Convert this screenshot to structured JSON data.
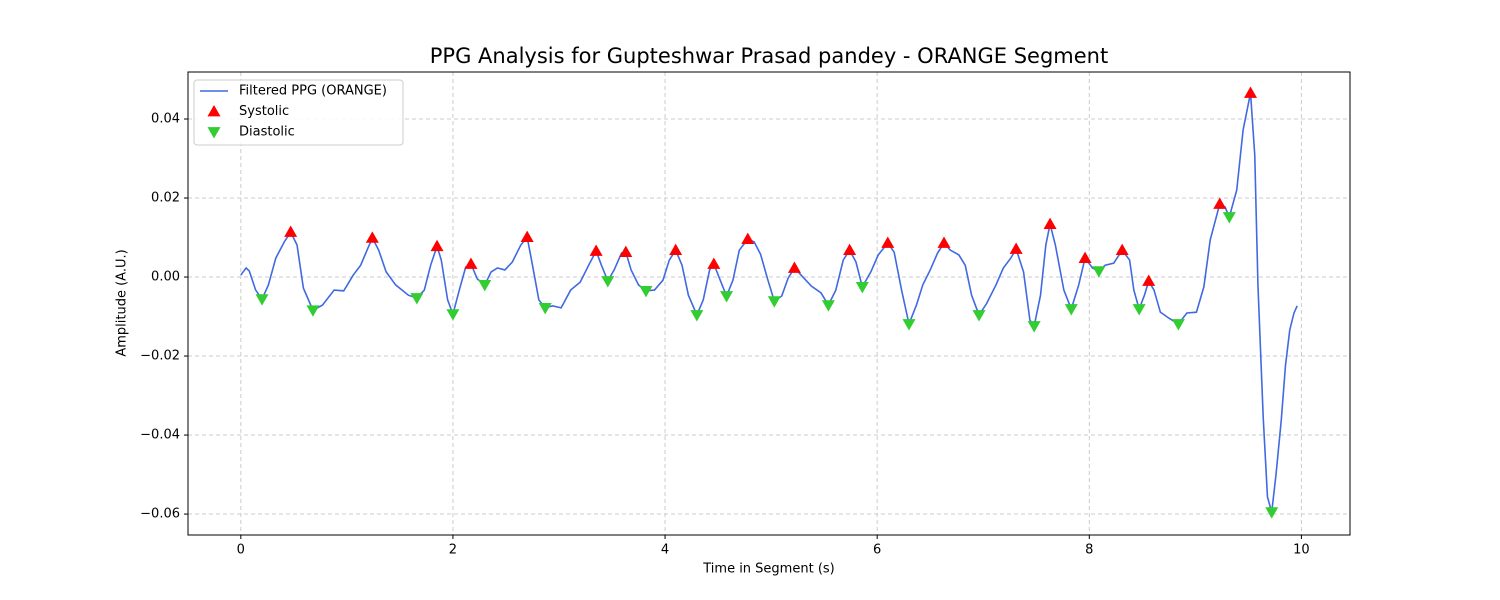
{
  "chart_data": {
    "type": "line",
    "title": "PPG Analysis for Gupteshwar Prasad pandey - ORANGE Segment",
    "xlabel": "Time in Segment (s)",
    "ylabel": "Amplitude (A.U.)",
    "xlim": [
      -0.498,
      10.458
    ],
    "ylim": [
      -0.0653,
      0.0519
    ],
    "xticks": [
      0,
      2,
      4,
      6,
      8,
      10
    ],
    "yticks": [
      {
        "value": -0.06,
        "label": "−0.06"
      },
      {
        "value": -0.04,
        "label": "−0.04"
      },
      {
        "value": -0.02,
        "label": "−0.02"
      },
      {
        "value": 0,
        "label": "0.00"
      },
      0.02,
      0.04
    ],
    "grid": true,
    "legend": "upper left",
    "series": [
      {
        "name": "Filtered PPG (ORANGE)",
        "color": "#4169e1",
        "marker": "line",
        "x": [
          0,
          0.05,
          0.08,
          0.14,
          0.2,
          0.26,
          0.33,
          0.41,
          0.47,
          0.53,
          0.59,
          0.68,
          0.77,
          0.88,
          0.97,
          1.06,
          1.13,
          1.19,
          1.24,
          1.3,
          1.37,
          1.46,
          1.58,
          1.66,
          1.73,
          1.79,
          1.85,
          1.89,
          1.95,
          2.0,
          2.06,
          2.12,
          2.17,
          2.23,
          2.3,
          2.36,
          2.42,
          2.49,
          2.56,
          2.64,
          2.7,
          2.75,
          2.81,
          2.87,
          2.94,
          3.02,
          3.11,
          3.2,
          3.28,
          3.35,
          3.4,
          3.46,
          3.52,
          3.59,
          3.63,
          3.68,
          3.75,
          3.82,
          3.9,
          3.98,
          4.04,
          4.1,
          4.16,
          4.22,
          4.3,
          4.36,
          4.42,
          4.46,
          4.52,
          4.58,
          4.64,
          4.7,
          4.78,
          4.84,
          4.9,
          4.97,
          5.03,
          5.1,
          5.16,
          5.22,
          5.3,
          5.38,
          5.47,
          5.54,
          5.61,
          5.68,
          5.74,
          5.8,
          5.86,
          5.94,
          6.01,
          6.1,
          6.16,
          6.23,
          6.3,
          6.37,
          6.43,
          6.5,
          6.57,
          6.63,
          6.69,
          6.77,
          6.83,
          6.89,
          6.96,
          7.03,
          7.12,
          7.19,
          7.26,
          7.31,
          7.38,
          7.44,
          7.48,
          7.54,
          7.59,
          7.63,
          7.68,
          7.76,
          7.83,
          7.9,
          7.96,
          8.03,
          8.09,
          8.15,
          8.23,
          8.31,
          8.38,
          8.42,
          8.47,
          8.52,
          8.56,
          8.61,
          8.67,
          8.75,
          8.84,
          8.92,
          9.01,
          9.08,
          9.14,
          9.23,
          9.28,
          9.32,
          9.39,
          9.45,
          9.52,
          9.56,
          9.59,
          9.64,
          9.68,
          9.72,
          9.76,
          9.81,
          9.85,
          9.89,
          9.93,
          9.96
        ],
        "values": [
          0.0005,
          0.0023,
          0.0015,
          -0.0033,
          -0.0056,
          -0.002,
          0.0048,
          0.0089,
          0.0114,
          0.0081,
          -0.0028,
          -0.0084,
          -0.0071,
          -0.0033,
          -0.0035,
          0.0005,
          0.003,
          0.0068,
          0.0099,
          0.0068,
          0.0013,
          -0.002,
          -0.0046,
          -0.0053,
          -0.0033,
          0.003,
          0.0078,
          0.0043,
          -0.0058,
          -0.0094,
          -0.0033,
          0.0025,
          0.0033,
          -0.0005,
          -0.002,
          0.0013,
          0.0023,
          0.0018,
          0.0038,
          0.0081,
          0.0101,
          0.003,
          -0.0058,
          -0.0078,
          -0.0073,
          -0.0078,
          -0.0033,
          -0.0013,
          0.003,
          0.0066,
          0.003,
          -0.001,
          0.0018,
          0.0061,
          0.0063,
          0.0018,
          -0.002,
          -0.0035,
          -0.0033,
          -0.0008,
          0.0043,
          0.0068,
          0.003,
          -0.0046,
          -0.0096,
          -0.0058,
          0.0018,
          0.0033,
          -0.0008,
          -0.0048,
          -0.0008,
          0.0068,
          0.0096,
          0.0089,
          0.0058,
          -0.0008,
          -0.0061,
          -0.0048,
          -0.0003,
          0.0023,
          0,
          -0.0023,
          -0.004,
          -0.0071,
          -0.0033,
          0.0043,
          0.0068,
          0.0038,
          -0.0025,
          0.0013,
          0.0056,
          0.0086,
          0.0063,
          -0.0033,
          -0.0119,
          -0.0071,
          -0.002,
          0.0018,
          0.0061,
          0.0086,
          0.0068,
          0.0056,
          0.003,
          -0.0046,
          -0.0096,
          -0.0068,
          -0.002,
          0.0023,
          0.0048,
          0.0071,
          0.0013,
          -0.0109,
          -0.0124,
          -0.0046,
          0.0081,
          0.0134,
          0.0081,
          -0.0033,
          -0.0081,
          -0.002,
          0.0048,
          0.0023,
          0.0015,
          0.003,
          0.0035,
          0.0068,
          0.0043,
          -0.0033,
          -0.0081,
          -0.0046,
          -0.001,
          -0.0033,
          -0.0089,
          -0.0104,
          -0.0119,
          -0.0091,
          -0.0089,
          -0.0025,
          0.0094,
          0.0185,
          0.0177,
          0.0152,
          0.022,
          0.0372,
          0.0466,
          0.0309,
          -0.002,
          -0.0357,
          -0.0557,
          -0.0595,
          -0.0501,
          -0.0362,
          -0.0223,
          -0.0134,
          -0.0091,
          -0.0073
        ]
      },
      {
        "name": "Systolic",
        "color": "#ff0000",
        "marker": "^",
        "x": [
          0.47,
          1.24,
          1.85,
          2.17,
          2.7,
          3.35,
          3.63,
          4.1,
          4.46,
          4.78,
          5.22,
          5.74,
          6.1,
          6.63,
          7.31,
          7.63,
          7.96,
          8.31,
          8.56,
          9.23,
          9.52
        ],
        "values": [
          0.0114,
          0.0099,
          0.0078,
          0.0033,
          0.0101,
          0.0066,
          0.0063,
          0.0068,
          0.0033,
          0.0096,
          0.0023,
          0.0068,
          0.0086,
          0.0086,
          0.0071,
          0.0134,
          0.0048,
          0.0068,
          -0.001,
          0.0185,
          0.0466
        ]
      },
      {
        "name": "Diastolic",
        "color": "#32cd32",
        "marker": "v",
        "x": [
          0.2,
          0.68,
          1.66,
          2.0,
          2.3,
          2.87,
          3.46,
          3.82,
          4.3,
          4.58,
          5.03,
          5.54,
          5.86,
          6.3,
          6.96,
          7.48,
          7.83,
          8.09,
          8.47,
          8.84,
          9.32,
          9.72
        ],
        "values": [
          -0.0056,
          -0.0084,
          -0.0053,
          -0.0094,
          -0.002,
          -0.0078,
          -0.001,
          -0.0035,
          -0.0096,
          -0.0048,
          -0.0061,
          -0.0071,
          -0.0025,
          -0.0119,
          -0.0096,
          -0.0124,
          -0.0081,
          0.0015,
          -0.0081,
          -0.0119,
          0.0152,
          -0.0595
        ]
      }
    ]
  }
}
